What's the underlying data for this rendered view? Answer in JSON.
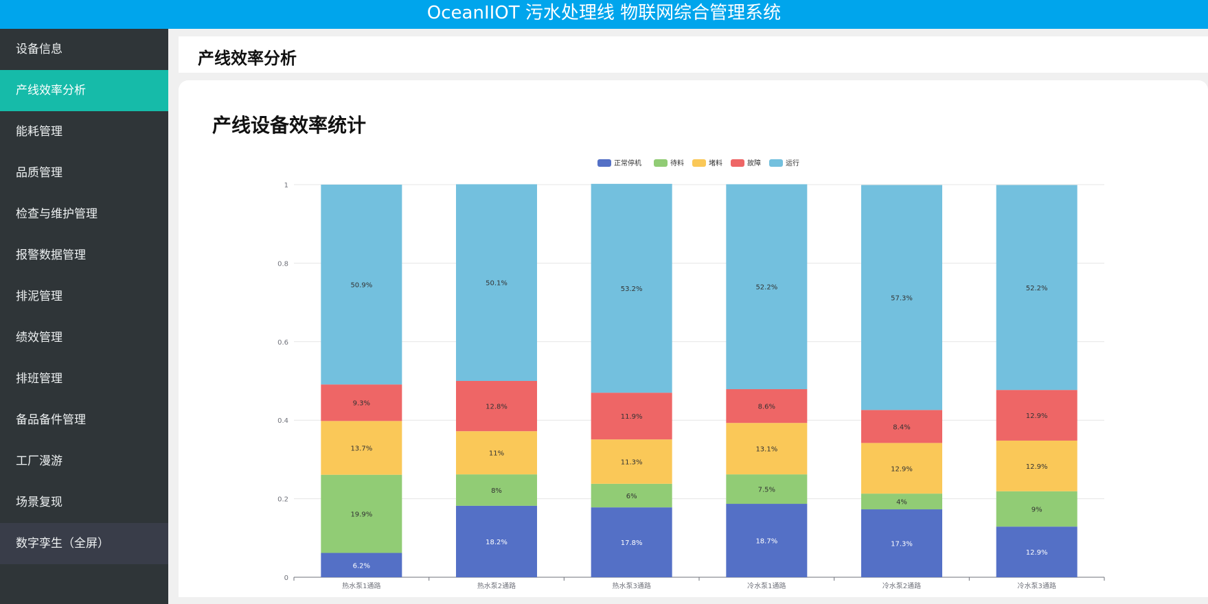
{
  "header": {
    "title": "OceanIIOT 污水处理线 物联网综合管理系统"
  },
  "sidebar": {
    "items": [
      {
        "label": "设备信息"
      },
      {
        "label": "产线效率分析"
      },
      {
        "label": "能耗管理"
      },
      {
        "label": "品质管理"
      },
      {
        "label": "检查与维护管理"
      },
      {
        "label": "报警数据管理"
      },
      {
        "label": "排泥管理"
      },
      {
        "label": "绩效管理"
      },
      {
        "label": "排班管理"
      },
      {
        "label": "备品备件管理"
      },
      {
        "label": "工厂漫游"
      },
      {
        "label": "场景复现"
      },
      {
        "label": "数字孪生（全屏）"
      }
    ]
  },
  "page": {
    "title": "产线效率分析"
  },
  "card": {
    "title": "产线设备效率统计"
  },
  "colors": {
    "header": "#00a5ec",
    "sidebar": "#2f3538",
    "active": "#16bba9"
  },
  "chart_data": {
    "type": "bar",
    "stacked": true,
    "categories": [
      "热水泵1通路",
      "热水泵2通路",
      "热水泵3通路",
      "冷水泵1通路",
      "冷水泵2通路",
      "冷水泵3通路"
    ],
    "ylim": [
      0,
      1
    ],
    "yticks": [
      "0",
      "0.2",
      "0.4",
      "0.6",
      "0.8",
      "1"
    ],
    "legend_position": "top-center",
    "grid": true,
    "series": [
      {
        "name": "正常停机",
        "color": "#5470c6",
        "values": [
          0.062,
          0.182,
          0.178,
          0.187,
          0.173,
          0.129
        ],
        "labels": [
          "6.2%",
          "18.2%",
          "17.8%",
          "18.7%",
          "17.3%",
          "12.9%"
        ]
      },
      {
        "name": "待料",
        "color": "#91cc75",
        "values": [
          0.199,
          0.08,
          0.06,
          0.075,
          0.04,
          0.09
        ],
        "labels": [
          "19.9%",
          "8%",
          "6%",
          "7.5%",
          "4%",
          "9%"
        ]
      },
      {
        "name": "堵料",
        "color": "#fac858",
        "values": [
          0.137,
          0.11,
          0.113,
          0.131,
          0.129,
          0.129
        ],
        "labels": [
          "13.7%",
          "11%",
          "11.3%",
          "13.1%",
          "12.9%",
          "12.9%"
        ]
      },
      {
        "name": "故障",
        "color": "#ee6666",
        "values": [
          0.093,
          0.128,
          0.119,
          0.086,
          0.084,
          0.129
        ],
        "labels": [
          "9.3%",
          "12.8%",
          "11.9%",
          "8.6%",
          "8.4%",
          "12.9%"
        ]
      },
      {
        "name": "运行",
        "color": "#73c0de",
        "values": [
          0.509,
          0.501,
          0.532,
          0.522,
          0.573,
          0.522
        ],
        "labels": [
          "50.9%",
          "50.1%",
          "53.2%",
          "52.2%",
          "57.3%",
          "52.2%"
        ]
      }
    ]
  }
}
